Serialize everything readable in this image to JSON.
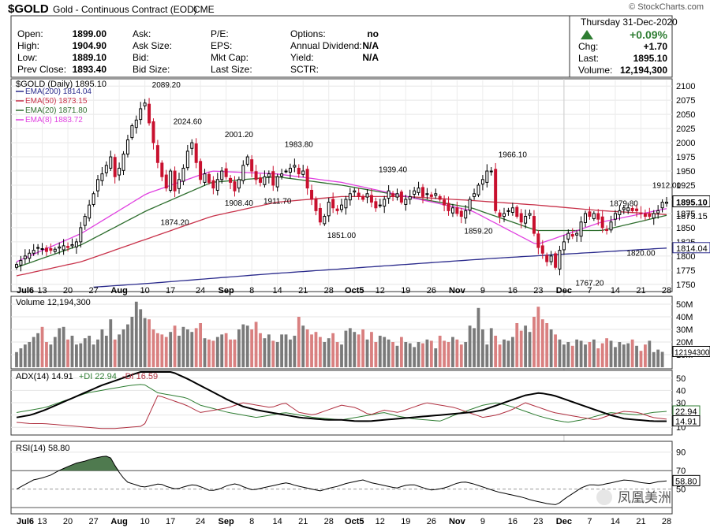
{
  "header": {
    "symbol": "$GOLD",
    "name": "Gold - Continuous Contract (EOD)",
    "exchange": "CME",
    "brand": "© StockCharts.com",
    "date": "Thursday  31-Dec-2020",
    "change_pct": "+0.09%",
    "change_label": "Chg:",
    "change_value": "+1.70",
    "last_label": "Last:",
    "last_value": "1895.10",
    "volume_label": "Volume:",
    "volume_value": "12,194,300"
  },
  "quote_table": [
    {
      "label": "Open:",
      "value": "1899.00"
    },
    {
      "label": "High:",
      "value": "1904.90"
    },
    {
      "label": "Low:",
      "value": "1889.10"
    },
    {
      "label": "Prev Close:",
      "value": "1893.40"
    },
    {
      "label": "Ask:",
      "value": ""
    },
    {
      "label": "Ask Size:",
      "value": ""
    },
    {
      "label": "Bid:",
      "value": ""
    },
    {
      "label": "Bid Size:",
      "value": ""
    },
    {
      "label": "P/E:",
      "value": ""
    },
    {
      "label": "EPS:",
      "value": ""
    },
    {
      "label": "Mkt Cap:",
      "value": ""
    },
    {
      "label": "Last Size:",
      "value": ""
    },
    {
      "label": "Options:",
      "value": "no"
    },
    {
      "label": "Annual Dividend:",
      "value": "N/A"
    },
    {
      "label": "Yield:",
      "value": "N/A"
    },
    {
      "label": "SCTR:",
      "value": ""
    }
  ],
  "colors": {
    "up": "#000000",
    "down": "#c8102e",
    "ema200": "#2a2a8c",
    "ema50": "#c8324a",
    "ema20": "#2e6e2e",
    "ema8": "#e040e0",
    "adx": "#000000",
    "plus_di": "#2e7d32",
    "minus_di": "#b03040",
    "rsi_fill": "#4f7a4f",
    "vol_up": "#7a7a7a",
    "vol_down": "#d98080"
  },
  "watermark": "凤凰美洲",
  "chart_data": {
    "type": "candlestick",
    "title": "$GOLD (Daily) 1895.10",
    "price_axis": {
      "ylim": [
        1740,
        2110
      ],
      "ticks": [
        1750,
        1775,
        1800,
        1825,
        1850,
        1875,
        1900,
        1925,
        1950,
        1975,
        2000,
        2025,
        2050,
        2075,
        2100
      ]
    },
    "x_labels": [
      "Jul6",
      "13",
      "20",
      "27",
      "Aug",
      "10",
      "17",
      "24",
      "Sep",
      "8",
      "14",
      "21",
      "28",
      "Oct5",
      "12",
      "19",
      "26",
      "Nov",
      "9",
      "16",
      "23",
      "Dec",
      "7",
      "14",
      "21",
      "28"
    ],
    "legend": [
      {
        "name": "EMA(200) 1814.04",
        "key": "ema200"
      },
      {
        "name": "EMA(50) 1873.15",
        "key": "ema50"
      },
      {
        "name": "EMA(20) 1871.80",
        "key": "ema20"
      },
      {
        "name": "EMA(8) 1883.72",
        "key": "ema8"
      }
    ],
    "price_labels": [
      {
        "label": "1895.10",
        "value": 1895.1,
        "style": "last"
      },
      {
        "label": "1873.15",
        "value": 1871,
        "style": "plain"
      },
      {
        "label": "1814.04",
        "value": 1814.04,
        "style": "box"
      }
    ],
    "annotations": [
      {
        "text": "2089.20",
        "x": 38,
        "y": 2089.2
      },
      {
        "text": "2024.60",
        "x": 43,
        "y": 2024.6
      },
      {
        "text": "2001.20",
        "x": 56,
        "y": 2001.2
      },
      {
        "text": "1983.80",
        "x": 71,
        "y": 1983.8
      },
      {
        "text": "1939.40",
        "x": 94,
        "y": 1939.4
      },
      {
        "text": "1966.10",
        "x": 124,
        "y": 1966.1
      },
      {
        "text": "1912.00",
        "x": 163,
        "y": 1912
      },
      {
        "text": "1879.80",
        "x": 152,
        "y": 1879.8
      },
      {
        "text": "1874.20",
        "x": 40,
        "y": 1874.2
      },
      {
        "text": "1908.40",
        "x": 56,
        "y": 1908.4
      },
      {
        "text": "1911.70",
        "x": 65,
        "y": 1911.7
      },
      {
        "text": "1851.00",
        "x": 82,
        "y": 1851
      },
      {
        "text": "1859.20",
        "x": 116,
        "y": 1859.2
      },
      {
        "text": "1767.20",
        "x": 144,
        "y": 1767.2
      },
      {
        "text": "1820.00",
        "x": 157,
        "y": 1820
      }
    ],
    "closes": [
      1785,
      1792,
      1800,
      1805,
      1810,
      1815,
      1813,
      1808,
      1810,
      1812,
      1816,
      1818,
      1815,
      1820,
      1825,
      1850,
      1870,
      1890,
      1910,
      1935,
      1945,
      1960,
      1975,
      1940,
      1955,
      1980,
      2005,
      2030,
      2040,
      2060,
      2070,
      2035,
      2000,
      1965,
      1940,
      1920,
      1950,
      1915,
      1935,
      1955,
      1985,
      2000,
      1965,
      1935,
      1945,
      1930,
      1920,
      1935,
      1950,
      1940,
      1930,
      1915,
      1935,
      1960,
      1975,
      1950,
      1935,
      1930,
      1940,
      1945,
      1925,
      1940,
      1945,
      1950,
      1955,
      1960,
      1945,
      1950,
      1920,
      1900,
      1880,
      1860,
      1870,
      1895,
      1885,
      1880,
      1890,
      1900,
      1910,
      1915,
      1905,
      1900,
      1910,
      1895,
      1885,
      1890,
      1900,
      1915,
      1905,
      1910,
      1895,
      1900,
      1905,
      1915,
      1920,
      1905,
      1910,
      1905,
      1910,
      1900,
      1890,
      1880,
      1885,
      1875,
      1870,
      1880,
      1900,
      1910,
      1925,
      1935,
      1950,
      1950,
      1880,
      1870,
      1875,
      1880,
      1885,
      1870,
      1860,
      1870,
      1875,
      1840,
      1815,
      1805,
      1790,
      1800,
      1780,
      1810,
      1825,
      1840,
      1835,
      1840,
      1860,
      1875,
      1870,
      1875,
      1865,
      1850,
      1845,
      1860,
      1875,
      1880,
      1885,
      1885,
      1880,
      1880,
      1875,
      1870,
      1870,
      1875,
      1880,
      1895,
      1895.1
    ],
    "ema200": [
      1745,
      1752,
      1760,
      1768,
      1775,
      1782,
      1789,
      1796,
      1802,
      1808,
      1814.04
    ],
    "ema50": [
      1765,
      1790,
      1830,
      1870,
      1895,
      1905,
      1905,
      1898,
      1890,
      1880,
      1873.15
    ],
    "ema20": [
      1780,
      1820,
      1880,
      1930,
      1940,
      1925,
      1905,
      1885,
      1845,
      1845,
      1871.8
    ],
    "ema8": [
      1790,
      1840,
      1910,
      1950,
      1945,
      1930,
      1905,
      1880,
      1820,
      1860,
      1883.72
    ],
    "volume": {
      "label": "Volume 12,194,300",
      "last_label": "12194300",
      "axis_labels": [
        "50M",
        "40M",
        "30M",
        "20M",
        "10M"
      ],
      "ticks": [
        50,
        40,
        30,
        20,
        10
      ],
      "ylim": [
        0,
        55
      ],
      "values_m": [
        12,
        15,
        18,
        20,
        24,
        27,
        32,
        20,
        18,
        24,
        31,
        32,
        22,
        25,
        18,
        19,
        23,
        25,
        18,
        22,
        30,
        25,
        38,
        22,
        26,
        30,
        34,
        40,
        52,
        46,
        39,
        38,
        30,
        27,
        26,
        24,
        28,
        33,
        25,
        32,
        30,
        28,
        31,
        35,
        23,
        22,
        21,
        24,
        26,
        27,
        22,
        22,
        30,
        34,
        33,
        30,
        36,
        27,
        23,
        26,
        21,
        20,
        26,
        26,
        22,
        25,
        40,
        33,
        30,
        26,
        28,
        24,
        20,
        23,
        27,
        20,
        18,
        29,
        31,
        28,
        26,
        30,
        22,
        28,
        20,
        25,
        24,
        22,
        20,
        17,
        24,
        20,
        19,
        16,
        20,
        19,
        22,
        21,
        15,
        25,
        21,
        20,
        24,
        22,
        18,
        20,
        33,
        31,
        47,
        30,
        18,
        31,
        25,
        18,
        22,
        21,
        24,
        35,
        29,
        33,
        28,
        40,
        48,
        38,
        35,
        30,
        26,
        22,
        18,
        20,
        17,
        22,
        21,
        18,
        20,
        22,
        15,
        19,
        23,
        21,
        16,
        20,
        18,
        19,
        22,
        17,
        13,
        18,
        21,
        12,
        14,
        12.19
      ]
    },
    "adx": {
      "label_adx": "ADX(14) 14.91",
      "label_plus": "+DI 22.94",
      "label_minus": "-DI 16.59",
      "axis_labels": [
        "50",
        "40",
        "30",
        "20",
        "10"
      ],
      "ticks": [
        50,
        40,
        30,
        20,
        10
      ],
      "ylim": [
        5,
        55
      ],
      "last_plus": "22.94",
      "last_minus": "16.59",
      "last_adx": "14.91",
      "adx": [
        18,
        20,
        24,
        29,
        34,
        39,
        44,
        48,
        52,
        56,
        58,
        55,
        50,
        44,
        38,
        32,
        27,
        24,
        22,
        20,
        18,
        17,
        16,
        16,
        15,
        15,
        16,
        17,
        18,
        19,
        20,
        21,
        22,
        24,
        28,
        32,
        36,
        38,
        36,
        32,
        28,
        24,
        20,
        17,
        16,
        15,
        14.91
      ],
      "plus_di": [
        22,
        24,
        26,
        30,
        34,
        38,
        40,
        42,
        44,
        45,
        38,
        36,
        34,
        28,
        25,
        22,
        20,
        18,
        20,
        22,
        20,
        18,
        17,
        16,
        18,
        20,
        22,
        19,
        17,
        16,
        15,
        20,
        24,
        28,
        30,
        27,
        23,
        19,
        16,
        14,
        16,
        19,
        22,
        21,
        20,
        22,
        22.94
      ],
      "minus_di": [
        14,
        13,
        13,
        12,
        11,
        10,
        9,
        9,
        10,
        11,
        36,
        32,
        28,
        22,
        24,
        26,
        30,
        28,
        26,
        30,
        22,
        20,
        24,
        28,
        26,
        20,
        24,
        22,
        26,
        30,
        28,
        26,
        22,
        18,
        20,
        24,
        30,
        26,
        22,
        20,
        18,
        16,
        20,
        23,
        22,
        18,
        16.59
      ]
    },
    "rsi": {
      "label": "RSI(14) 58.80",
      "axis_labels": [
        "90",
        "70",
        "50"
      ],
      "ticks": [
        90,
        70,
        50
      ],
      "ylim": [
        25,
        100
      ],
      "last_label": "58.80",
      "values": [
        50,
        55,
        60,
        62,
        65,
        70,
        74,
        78,
        80,
        83,
        85,
        86,
        70,
        58,
        55,
        52,
        54,
        56,
        52,
        50,
        53,
        55,
        52,
        48,
        50,
        54,
        56,
        52,
        49,
        51,
        53,
        55,
        57,
        54,
        52,
        50,
        48,
        51,
        53,
        56,
        58,
        60,
        57,
        55,
        53,
        51,
        54,
        55,
        52,
        49,
        50,
        52,
        56,
        58,
        56,
        53,
        50,
        47,
        45,
        43,
        41,
        38,
        36,
        34,
        33,
        40,
        46,
        52,
        55,
        54,
        56,
        58,
        60,
        59,
        57,
        56,
        58,
        58.8
      ]
    }
  }
}
